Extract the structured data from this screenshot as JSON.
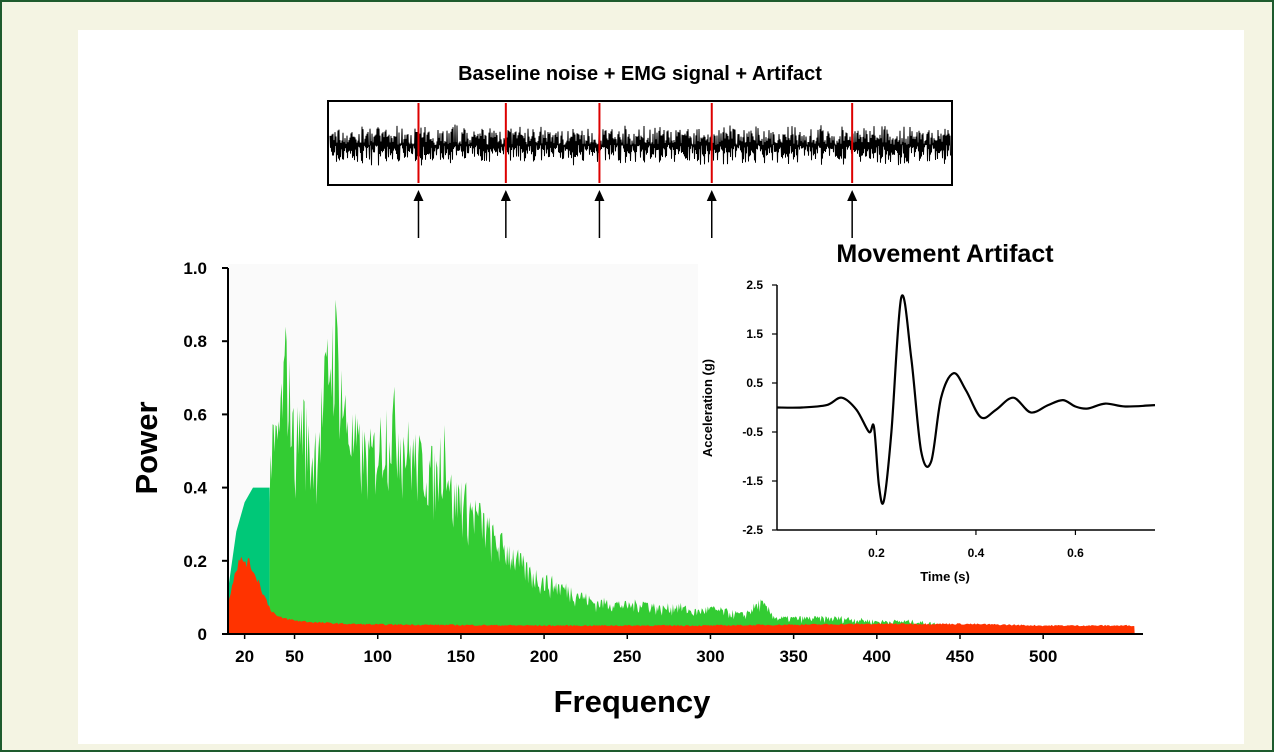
{
  "colors": {
    "frame_border": "#1e5b2e",
    "frame_bg": "#f4f4e3",
    "emg_green": "#33cc33",
    "teal_noise": "#00c878",
    "artifact_red": "#ff3300",
    "marker_red": "#dd0000",
    "trace": "#000000"
  },
  "chart_data": [
    {
      "type": "line",
      "title": "Baseline noise + EMG signal + Artifact",
      "description_markers": "artifact positions indicated by red vertical lines and arrows",
      "marker_positions_fraction": [
        0.145,
        0.285,
        0.435,
        0.615,
        0.84
      ]
    },
    {
      "type": "area",
      "xlabel": "Frequency",
      "ylabel": "Power",
      "x_tick_labels": [
        "20",
        "50",
        "100",
        "150",
        "200",
        "250",
        "300",
        "350",
        "400",
        "450",
        "500"
      ],
      "x_ticks": [
        20,
        50,
        100,
        150,
        200,
        250,
        300,
        350,
        400,
        450,
        500
      ],
      "y_tick_labels": [
        "0",
        "0.2",
        "0.4",
        "0.6",
        "0.8",
        "1.0"
      ],
      "y_ticks": [
        0,
        0.2,
        0.4,
        0.6,
        0.8,
        1.0
      ],
      "xlim": [
        10,
        560
      ],
      "ylim": [
        0,
        1.0
      ],
      "series": [
        {
          "role": "baseline-noise",
          "color": "#00c878",
          "x": [
            10,
            15,
            20,
            25,
            30,
            35
          ],
          "y": [
            0.12,
            0.28,
            0.36,
            0.4,
            0.4,
            0.4
          ]
        },
        {
          "role": "emg",
          "color": "#33cc33",
          "x": [
            35,
            40,
            45,
            50,
            55,
            60,
            65,
            70,
            75,
            80,
            85,
            90,
            95,
            100,
            105,
            110,
            115,
            120,
            125,
            130,
            135,
            140,
            145,
            150,
            155,
            160,
            170,
            180,
            190,
            200,
            210,
            220,
            230,
            240,
            250,
            260,
            270,
            280,
            290,
            300,
            310,
            320,
            330,
            340,
            350,
            360,
            380,
            400,
            420,
            440
          ],
          "y": [
            0.55,
            0.62,
            0.88,
            0.6,
            0.7,
            0.55,
            0.65,
            0.85,
            0.95,
            0.7,
            0.62,
            0.58,
            0.56,
            0.6,
            0.66,
            0.68,
            0.62,
            0.58,
            0.55,
            0.54,
            0.5,
            0.63,
            0.42,
            0.45,
            0.4,
            0.38,
            0.3,
            0.26,
            0.2,
            0.17,
            0.15,
            0.13,
            0.1,
            0.1,
            0.09,
            0.1,
            0.08,
            0.09,
            0.07,
            0.08,
            0.07,
            0.06,
            0.1,
            0.05,
            0.05,
            0.05,
            0.05,
            0.04,
            0.04,
            0.03
          ]
        },
        {
          "role": "movement-artifact",
          "color": "#ff3300",
          "x": [
            10,
            13,
            16,
            20,
            24,
            28,
            32,
            36,
            40,
            45,
            50,
            60,
            80,
            100,
            200,
            300,
            400,
            450,
            500,
            555
          ],
          "y": [
            0.09,
            0.16,
            0.21,
            0.22,
            0.2,
            0.16,
            0.11,
            0.07,
            0.05,
            0.045,
            0.04,
            0.035,
            0.03,
            0.028,
            0.025,
            0.025,
            0.03,
            0.03,
            0.025,
            0.025
          ]
        }
      ]
    },
    {
      "type": "line",
      "title": "Movement Artifact",
      "xlabel": "Time (s)",
      "ylabel": "Acceleration (g)",
      "x_tick_labels": [
        "0.2",
        "0.4",
        "0.6"
      ],
      "x_ticks": [
        0.2,
        0.4,
        0.6
      ],
      "y_tick_labels": [
        "2.5",
        "1.5",
        "0.5",
        "-0.5",
        "-1.5",
        "-2.5"
      ],
      "y_ticks": [
        2.5,
        1.5,
        0.5,
        -0.5,
        -1.5,
        -2.5
      ],
      "xlim": [
        0,
        0.76
      ],
      "ylim": [
        -2.5,
        2.5
      ],
      "series": [
        {
          "name": "",
          "x": [
            0.0,
            0.05,
            0.1,
            0.13,
            0.16,
            0.185,
            0.195,
            0.205,
            0.215,
            0.23,
            0.25,
            0.27,
            0.29,
            0.31,
            0.33,
            0.355,
            0.38,
            0.41,
            0.44,
            0.475,
            0.51,
            0.545,
            0.575,
            0.6,
            0.625,
            0.66,
            0.7,
            0.76
          ],
          "y": [
            0.0,
            0.0,
            0.05,
            0.2,
            -0.05,
            -0.5,
            -0.4,
            -1.6,
            -1.9,
            -0.5,
            2.25,
            1.0,
            -0.9,
            -1.1,
            0.2,
            0.7,
            0.35,
            -0.2,
            -0.05,
            0.2,
            -0.1,
            0.05,
            0.15,
            0.02,
            -0.02,
            0.08,
            0.02,
            0.05
          ]
        }
      ]
    }
  ]
}
